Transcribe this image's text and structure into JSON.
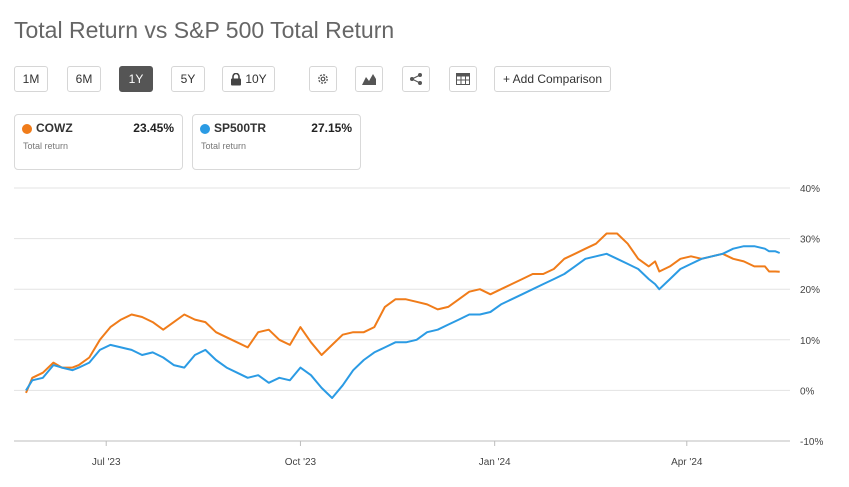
{
  "title": "Total Return vs S&P 500 Total Return",
  "toolbar": {
    "periods": [
      "1M",
      "6M",
      "1Y",
      "5Y",
      "10Y"
    ],
    "active_period": "1Y",
    "add_comparison_label": "+ Add Comparison"
  },
  "cards": [
    {
      "symbol": "COWZ",
      "value": "23.45%",
      "subtitle": "Total return",
      "color": "#f07c1a"
    },
    {
      "symbol": "SP500TR",
      "value": "27.15%",
      "subtitle": "Total return",
      "color": "#2b9be4"
    }
  ],
  "chart_data": {
    "type": "line",
    "title": "Total Return vs S&P 500 Total Return",
    "xlabel": "",
    "ylabel": "",
    "ylim": [
      -10,
      40
    ],
    "y_ticks": [
      40,
      30,
      20,
      10,
      0,
      -10
    ],
    "y_tick_labels": [
      "40%",
      "30%",
      "20%",
      "10%",
      "0%",
      "-10%"
    ],
    "x_tick_labels": [
      "Jul '23",
      "Oct '23",
      "Jan '24",
      "Apr '24"
    ],
    "x_tick_positions": [
      38,
      130,
      222,
      313
    ],
    "x_range": [
      0,
      360
    ],
    "series": [
      {
        "name": "COWZ",
        "color": "#f07c1a",
        "x": [
          0,
          3,
          8,
          13,
          17,
          22,
          25,
          30,
          35,
          40,
          45,
          50,
          55,
          60,
          65,
          70,
          75,
          80,
          85,
          90,
          95,
          100,
          105,
          110,
          115,
          120,
          125,
          130,
          135,
          140,
          145,
          150,
          155,
          160,
          165,
          170,
          175,
          180,
          185,
          190,
          195,
          200,
          205,
          210,
          215,
          220,
          225,
          230,
          235,
          240,
          245,
          250,
          255,
          260,
          265,
          270,
          275,
          280,
          285,
          290,
          295,
          298,
          300,
          305,
          310,
          315,
          320,
          325,
          330,
          335,
          340,
          345,
          350,
          352,
          355,
          357
        ],
        "values": [
          -0.5,
          2.5,
          3.5,
          5.5,
          4.5,
          4.5,
          5.0,
          6.5,
          10.0,
          12.5,
          14.0,
          15.0,
          14.5,
          13.5,
          12.0,
          13.5,
          15.0,
          14.0,
          13.5,
          11.5,
          10.5,
          9.5,
          8.5,
          11.5,
          12.0,
          10.0,
          9.0,
          12.5,
          9.5,
          7.0,
          9.0,
          11.0,
          11.5,
          11.5,
          12.5,
          16.5,
          18.0,
          18.0,
          17.5,
          17.0,
          16.0,
          16.5,
          18.0,
          19.5,
          20.0,
          19.0,
          20.0,
          21.0,
          22.0,
          23.0,
          23.0,
          24.0,
          26.0,
          27.0,
          28.0,
          29.0,
          31.0,
          31.0,
          29.0,
          26.0,
          24.5,
          25.5,
          23.5,
          24.5,
          26.0,
          26.5,
          26.0,
          26.5,
          27.0,
          26.0,
          25.5,
          24.5,
          24.5,
          23.5,
          23.5,
          23.45
        ]
      },
      {
        "name": "SP500TR",
        "color": "#2b9be4",
        "x": [
          0,
          3,
          8,
          13,
          17,
          22,
          25,
          30,
          35,
          40,
          45,
          50,
          55,
          60,
          65,
          70,
          75,
          80,
          85,
          90,
          95,
          100,
          105,
          110,
          115,
          120,
          125,
          130,
          135,
          140,
          145,
          150,
          155,
          160,
          165,
          170,
          175,
          180,
          185,
          190,
          195,
          200,
          205,
          210,
          215,
          220,
          225,
          230,
          235,
          240,
          245,
          250,
          255,
          260,
          265,
          270,
          275,
          280,
          285,
          290,
          295,
          298,
          300,
          305,
          310,
          315,
          320,
          325,
          330,
          335,
          340,
          345,
          350,
          352,
          355,
          357
        ],
        "values": [
          0.0,
          2.0,
          2.5,
          5.0,
          4.5,
          4.0,
          4.5,
          5.5,
          8.0,
          9.0,
          8.5,
          8.0,
          7.0,
          7.5,
          6.5,
          5.0,
          4.5,
          7.0,
          8.0,
          6.0,
          4.5,
          3.5,
          2.5,
          3.0,
          1.5,
          2.5,
          2.0,
          4.5,
          3.0,
          0.5,
          -1.5,
          1.0,
          4.0,
          6.0,
          7.5,
          8.5,
          9.5,
          9.5,
          10.0,
          11.5,
          12.0,
          13.0,
          14.0,
          15.0,
          15.0,
          15.5,
          17.0,
          18.0,
          19.0,
          20.0,
          21.0,
          22.0,
          23.0,
          24.5,
          26.0,
          26.5,
          27.0,
          26.0,
          25.0,
          24.0,
          22.0,
          21.0,
          20.0,
          22.0,
          24.0,
          25.0,
          26.0,
          26.5,
          27.0,
          28.0,
          28.5,
          28.5,
          28.0,
          27.5,
          27.5,
          27.15
        ]
      }
    ]
  }
}
